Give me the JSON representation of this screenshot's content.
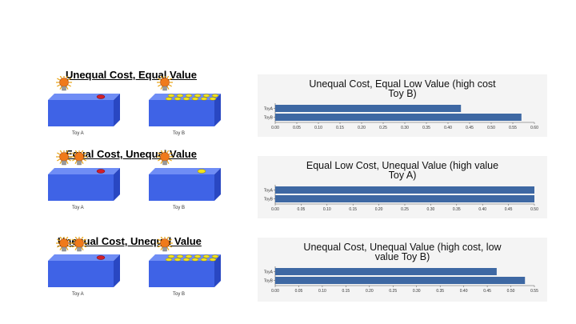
{
  "conditions": [
    {
      "title": "Unequal Cost, Equal Value",
      "toy_a": {
        "label": "Toy A",
        "bulbs": 1,
        "button": "red"
      },
      "toy_b": {
        "label": "Toy B",
        "bulbs": 1,
        "yellow_buttons": 12
      }
    },
    {
      "title": "Equal Cost, Unequal Value",
      "toy_a": {
        "label": "Toy A",
        "bulbs": 2,
        "button": "red"
      },
      "toy_b": {
        "label": "Toy B",
        "bulbs": 1,
        "yellow_buttons": 1
      }
    },
    {
      "title": "Unequal Cost, Unequal Value",
      "toy_a": {
        "label": "Toy A",
        "bulbs": 2,
        "button": "red"
      },
      "toy_b": {
        "label": "Toy B",
        "bulbs": 1,
        "yellow_buttons": 12
      }
    }
  ],
  "colors": {
    "box_front": "#3f63e6",
    "box_top": "#6f8df5",
    "box_side": "#2947c2",
    "bar": "#3e68a3",
    "red_button": "#d11f2a",
    "yellow_button": "#f2e21b",
    "bulb": "#f07a1a",
    "panel_bg": "#f4f4f4"
  },
  "chart_data": [
    {
      "type": "bar",
      "orientation": "horizontal",
      "title": "Unequal Cost, Equal Low Value (high cost Toy B)",
      "title_lines": [
        "Unequal Cost, Equal Low Value (high cost",
        "Toy B)"
      ],
      "categories": [
        "ToyA",
        "ToyB"
      ],
      "values": [
        0.43,
        0.57
      ],
      "xlim": [
        0,
        0.6
      ],
      "ticks": [
        "0.00",
        "0.05",
        "0.10",
        "0.15",
        "0.20",
        "0.25",
        "0.30",
        "0.35",
        "0.40",
        "0.45",
        "0.50",
        "0.55",
        "0.60"
      ],
      "grid": false
    },
    {
      "type": "bar",
      "orientation": "horizontal",
      "title": "Equal Low Cost, Unequal Value (high value Toy A)",
      "title_lines": [
        "Equal Low Cost, Unequal Value (high value",
        "Toy A)"
      ],
      "categories": [
        "ToyA",
        "ToyB"
      ],
      "values": [
        0.5,
        0.5
      ],
      "xlim": [
        0,
        0.5
      ],
      "ticks": [
        "0.00",
        "0.05",
        "0.10",
        "0.15",
        "0.20",
        "0.25",
        "0.30",
        "0.35",
        "0.40",
        "0.45",
        "0.50"
      ],
      "grid": false
    },
    {
      "type": "bar",
      "orientation": "horizontal",
      "title": "Unequal Cost, Unequal Value (high cost, low value Toy B)",
      "title_lines": [
        "Unequal Cost, Unequal Value (high cost, low",
        "value Toy B)"
      ],
      "categories": [
        "ToyA",
        "ToyB"
      ],
      "values": [
        0.47,
        0.53
      ],
      "xlim": [
        0,
        0.55
      ],
      "ticks": [
        "0.00",
        "0.05",
        "0.10",
        "0.15",
        "0.20",
        "0.25",
        "0.30",
        "0.35",
        "0.40",
        "0.45",
        "0.50",
        "0.55"
      ],
      "grid": false
    }
  ]
}
